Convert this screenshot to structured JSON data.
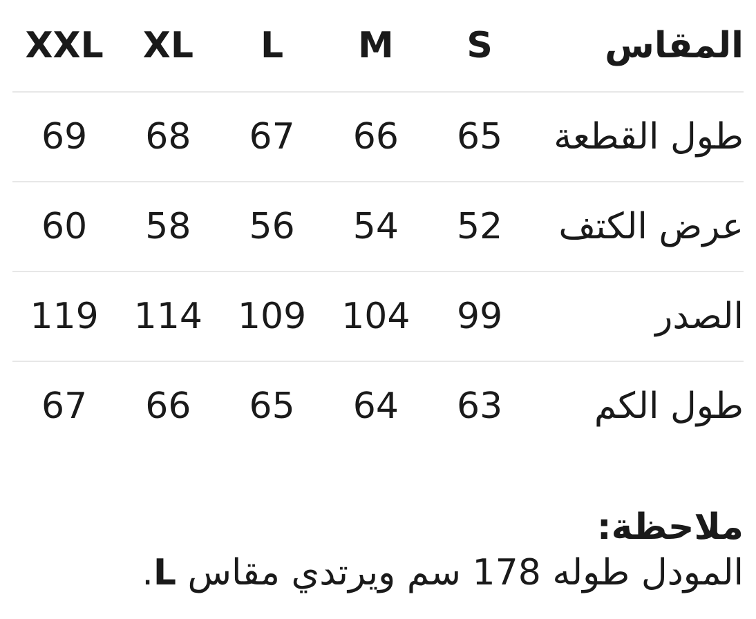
{
  "table": {
    "header": {
      "label": "المقاس",
      "sizes": [
        "S",
        "M",
        "L",
        "XL",
        "XXL"
      ]
    },
    "rows": [
      {
        "label": "طول القطعة",
        "values": [
          "65",
          "66",
          "67",
          "68",
          "69"
        ]
      },
      {
        "label": "عرض الكتف",
        "values": [
          "52",
          "54",
          "56",
          "58",
          "60"
        ]
      },
      {
        "label": "الصدر",
        "values": [
          "99",
          "104",
          "109",
          "114",
          "119"
        ]
      },
      {
        "label": "طول الكم",
        "values": [
          "63",
          "64",
          "65",
          "66",
          "67"
        ]
      }
    ]
  },
  "note": {
    "title": "ملاحظة:",
    "body_prefix": "المودل طوله 178 سم ويرتدي مقاس ",
    "size_value": "L",
    "body_suffix": "."
  },
  "colors": {
    "text": "#1a1a1a",
    "divider": "#e7e7e7",
    "background": "#ffffff"
  }
}
